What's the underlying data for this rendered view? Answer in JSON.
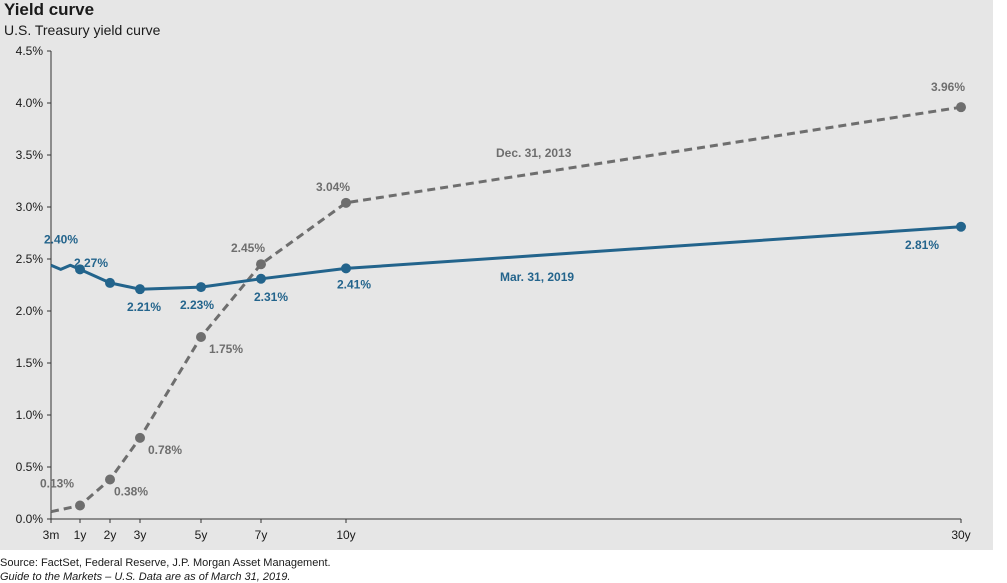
{
  "title": "Yield curve",
  "subtitle": "U.S. Treasury yield curve",
  "footer": {
    "source": "Source: FactSet, Federal Reserve, J.P. Morgan Asset Management.",
    "guide": "Guide to the Markets – U.S. Data are as of March 31, 2019."
  },
  "colors": {
    "mar2019": "#23648c",
    "dec2013": "#6e6e6e"
  },
  "chart_data": {
    "type": "line",
    "title": "Yield curve",
    "subtitle": "U.S. Treasury yield curve",
    "ylim": [
      0,
      4.5
    ],
    "yticks": [
      "0.0%",
      "0.5%",
      "1.0%",
      "1.5%",
      "2.0%",
      "2.5%",
      "3.0%",
      "3.5%",
      "4.0%",
      "4.5%"
    ],
    "xlim": [
      0.25,
      30
    ],
    "xticks": [
      {
        "label": "3m",
        "x": 0.25
      },
      {
        "label": "1y",
        "x": 1
      },
      {
        "label": "2y",
        "x": 2
      },
      {
        "label": "3y",
        "x": 3
      },
      {
        "label": "5y",
        "x": 5
      },
      {
        "label": "7y",
        "x": 7
      },
      {
        "label": "10y",
        "x": 10
      },
      {
        "label": "30y",
        "x": 30
      }
    ],
    "series": [
      {
        "name": "Mar. 31, 2019",
        "style": "solid",
        "line": [
          {
            "x": 0.25,
            "y": 2.44
          },
          {
            "x": 0.5,
            "y": 2.4
          },
          {
            "x": 0.75,
            "y": 2.44
          },
          {
            "x": 1,
            "y": 2.4
          },
          {
            "x": 2,
            "y": 2.27
          },
          {
            "x": 3,
            "y": 2.21
          },
          {
            "x": 5,
            "y": 2.23
          },
          {
            "x": 7,
            "y": 2.31
          },
          {
            "x": 10,
            "y": 2.41
          },
          {
            "x": 30,
            "y": 2.81
          }
        ],
        "points": [
          {
            "x": 1,
            "y": 2.4,
            "label": "2.40%"
          },
          {
            "x": 2,
            "y": 2.27,
            "label": "2.27%"
          },
          {
            "x": 3,
            "y": 2.21,
            "label": "2.21%"
          },
          {
            "x": 5,
            "y": 2.23,
            "label": "2.23%"
          },
          {
            "x": 7,
            "y": 2.31,
            "label": "2.31%"
          },
          {
            "x": 10,
            "y": 2.41,
            "label": "2.41%"
          },
          {
            "x": 30,
            "y": 2.81,
            "label": "2.81%"
          }
        ]
      },
      {
        "name": "Dec. 31, 2013",
        "style": "dashed",
        "line": [
          {
            "x": 0.25,
            "y": 0.07
          },
          {
            "x": 1,
            "y": 0.13
          },
          {
            "x": 2,
            "y": 0.38
          },
          {
            "x": 3,
            "y": 0.78
          },
          {
            "x": 5,
            "y": 1.75
          },
          {
            "x": 7,
            "y": 2.45
          },
          {
            "x": 10,
            "y": 3.04
          },
          {
            "x": 30,
            "y": 3.96
          }
        ],
        "points": [
          {
            "x": 1,
            "y": 0.13,
            "label": "0.13%"
          },
          {
            "x": 2,
            "y": 0.38,
            "label": "0.38%"
          },
          {
            "x": 3,
            "y": 0.78,
            "label": "0.78%"
          },
          {
            "x": 5,
            "y": 1.75,
            "label": "1.75%"
          },
          {
            "x": 7,
            "y": 2.45,
            "label": "2.45%"
          },
          {
            "x": 10,
            "y": 3.04,
            "label": "3.04%"
          },
          {
            "x": 30,
            "y": 3.96,
            "label": "3.96%"
          }
        ]
      }
    ]
  }
}
